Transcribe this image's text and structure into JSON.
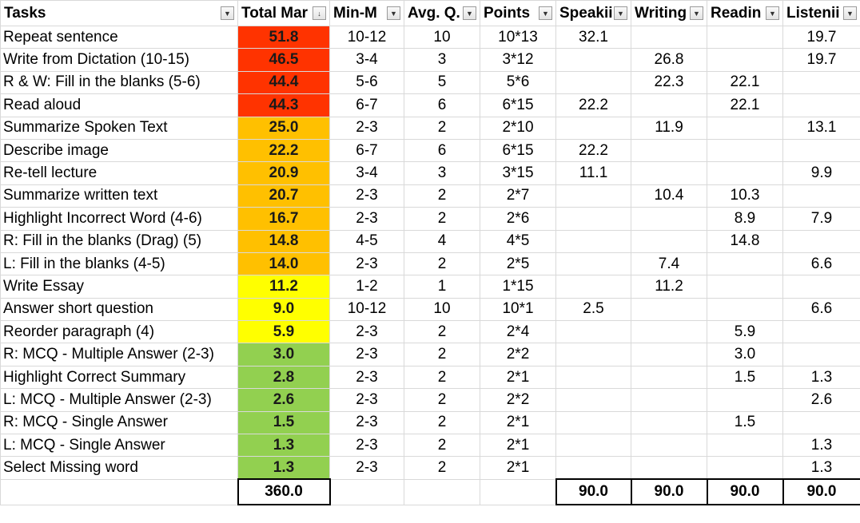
{
  "headers": [
    {
      "label": "Tasks",
      "filter_icon": "filter-dropdown-icon"
    },
    {
      "label": "Total Mar",
      "filter_icon": "sort-descending-filter-icon"
    },
    {
      "label": "Min-M",
      "filter_icon": "filter-dropdown-icon"
    },
    {
      "label": "Avg. Q.",
      "filter_icon": "filter-dropdown-icon"
    },
    {
      "label": "Points",
      "filter_icon": "filter-dropdown-icon"
    },
    {
      "label": "Speakii",
      "filter_icon": "filter-dropdown-icon"
    },
    {
      "label": "Writing",
      "filter_icon": "filter-dropdown-icon"
    },
    {
      "label": "Readin",
      "filter_icon": "filter-dropdown-icon"
    },
    {
      "label": "Listenii",
      "filter_icon": "filter-dropdown-icon"
    }
  ],
  "colors": {
    "red": "#ff3300",
    "orange": "#ffc000",
    "yellow": "#ffff00",
    "green": "#92d050",
    "grid": "#d9d9d9"
  },
  "rows": [
    {
      "task": "Repeat sentence",
      "total": "51.8",
      "color": "red",
      "minmax": "10-12",
      "avg": "10",
      "points": "10*13",
      "speaking": "32.1",
      "writing": "",
      "reading": "",
      "listening": "19.7"
    },
    {
      "task": "Write from Dictation (10-15)",
      "total": "46.5",
      "color": "red",
      "minmax": "3-4",
      "avg": "3",
      "points": "3*12",
      "speaking": "",
      "writing": "26.8",
      "reading": "",
      "listening": "19.7"
    },
    {
      "task": "R & W: Fill in the blanks (5-6)",
      "total": "44.4",
      "color": "red",
      "minmax": "5-6",
      "avg": "5",
      "points": "5*6",
      "speaking": "",
      "writing": "22.3",
      "reading": "22.1",
      "listening": ""
    },
    {
      "task": "Read aloud",
      "total": "44.3",
      "color": "red",
      "minmax": "6-7",
      "avg": "6",
      "points": "6*15",
      "speaking": "22.2",
      "writing": "",
      "reading": "22.1",
      "listening": ""
    },
    {
      "task": "Summarize Spoken Text",
      "total": "25.0",
      "color": "orange",
      "minmax": "2-3",
      "avg": "2",
      "points": "2*10",
      "speaking": "",
      "writing": "11.9",
      "reading": "",
      "listening": "13.1"
    },
    {
      "task": "Describe image",
      "total": "22.2",
      "color": "orange",
      "minmax": "6-7",
      "avg": "6",
      "points": "6*15",
      "speaking": "22.2",
      "writing": "",
      "reading": "",
      "listening": ""
    },
    {
      "task": "Re-tell lecture",
      "total": "20.9",
      "color": "orange",
      "minmax": "3-4",
      "avg": "3",
      "points": "3*15",
      "speaking": "11.1",
      "writing": "",
      "reading": "",
      "listening": "9.9"
    },
    {
      "task": "Summarize written text",
      "total": "20.7",
      "color": "orange",
      "minmax": "2-3",
      "avg": "2",
      "points": "2*7",
      "speaking": "",
      "writing": "10.4",
      "reading": "10.3",
      "listening": ""
    },
    {
      "task": "Highlight Incorrect Word (4-6)",
      "total": "16.7",
      "color": "orange",
      "minmax": "2-3",
      "avg": "2",
      "points": "2*6",
      "speaking": "",
      "writing": "",
      "reading": "8.9",
      "listening": "7.9"
    },
    {
      "task": "R: Fill in the blanks (Drag) (5)",
      "total": "14.8",
      "color": "orange",
      "minmax": "4-5",
      "avg": "4",
      "points": "4*5",
      "speaking": "",
      "writing": "",
      "reading": "14.8",
      "listening": ""
    },
    {
      "task": "L: Fill in the blanks (4-5)",
      "total": "14.0",
      "color": "orange",
      "minmax": "2-3",
      "avg": "2",
      "points": "2*5",
      "speaking": "",
      "writing": "7.4",
      "reading": "",
      "listening": "6.6"
    },
    {
      "task": "Write Essay",
      "total": "11.2",
      "color": "yellow",
      "minmax": "1-2",
      "avg": "1",
      "points": "1*15",
      "speaking": "",
      "writing": "11.2",
      "reading": "",
      "listening": ""
    },
    {
      "task": "Answer short question",
      "total": "9.0",
      "color": "yellow",
      "minmax": "10-12",
      "avg": "10",
      "points": "10*1",
      "speaking": "2.5",
      "writing": "",
      "reading": "",
      "listening": "6.6"
    },
    {
      "task": "Reorder paragraph (4)",
      "total": "5.9",
      "color": "yellow",
      "minmax": "2-3",
      "avg": "2",
      "points": "2*4",
      "speaking": "",
      "writing": "",
      "reading": "5.9",
      "listening": ""
    },
    {
      "task": "R: MCQ - Multiple Answer (2-3)",
      "total": "3.0",
      "color": "green",
      "minmax": "2-3",
      "avg": "2",
      "points": "2*2",
      "speaking": "",
      "writing": "",
      "reading": "3.0",
      "listening": ""
    },
    {
      "task": "Highlight Correct Summary",
      "total": "2.8",
      "color": "green",
      "minmax": "2-3",
      "avg": "2",
      "points": "2*1",
      "speaking": "",
      "writing": "",
      "reading": "1.5",
      "listening": "1.3"
    },
    {
      "task": "L: MCQ - Multiple Answer (2-3)",
      "total": "2.6",
      "color": "green",
      "minmax": "2-3",
      "avg": "2",
      "points": "2*2",
      "speaking": "",
      "writing": "",
      "reading": "",
      "listening": "2.6"
    },
    {
      "task": "R: MCQ - Single Answer",
      "total": "1.5",
      "color": "green",
      "minmax": "2-3",
      "avg": "2",
      "points": "2*1",
      "speaking": "",
      "writing": "",
      "reading": "1.5",
      "listening": ""
    },
    {
      "task": "L: MCQ - Single Answer",
      "total": "1.3",
      "color": "green",
      "minmax": "2-3",
      "avg": "2",
      "points": "2*1",
      "speaking": "",
      "writing": "",
      "reading": "",
      "listening": "1.3"
    },
    {
      "task": "Select Missing word",
      "total": "1.3",
      "color": "green",
      "minmax": "2-3",
      "avg": "2",
      "points": "2*1",
      "speaking": "",
      "writing": "",
      "reading": "",
      "listening": "1.3"
    }
  ],
  "totals": {
    "total": "360.0",
    "speaking": "90.0",
    "writing": "90.0",
    "reading": "90.0",
    "listening": "90.0"
  }
}
